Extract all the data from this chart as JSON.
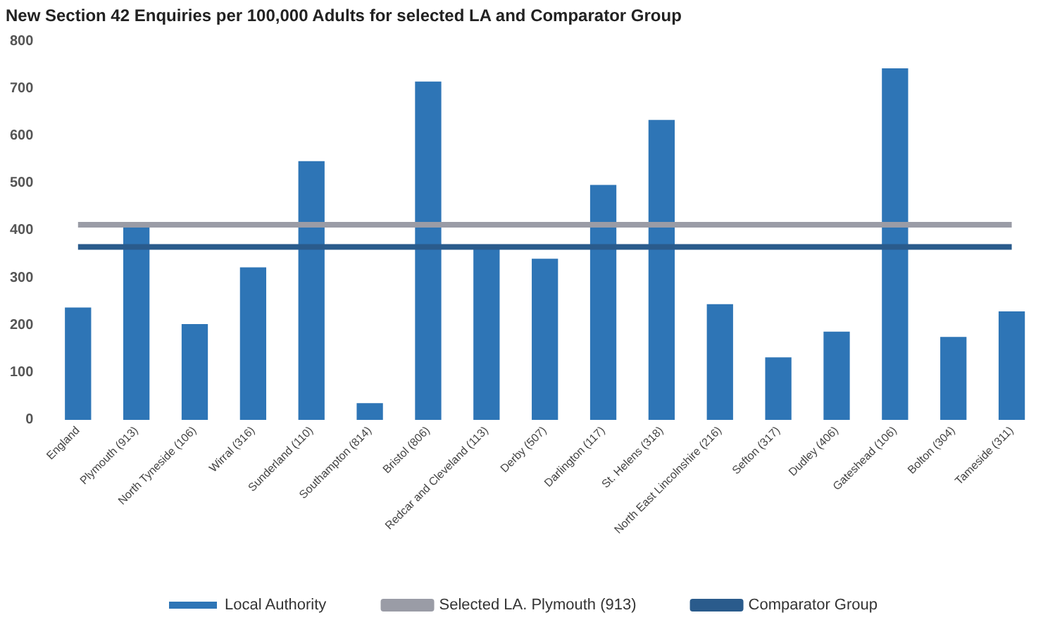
{
  "chart_data": {
    "type": "bar",
    "title": "New Section 42 Enquiries per 100,000 Adults for selected LA and Comparator Group",
    "categories": [
      "England",
      "Plymouth (913)",
      "North Tyneside (106)",
      "Wirral (316)",
      "Sunderland (110)",
      "Southampton (814)",
      "Bristol (806)",
      "Redcar and Cleveland (113)",
      "Derby (507)",
      "Darlington (117)",
      "St. Helens (318)",
      "North East Lincolnshire (216)",
      "Sefton (317)",
      "Dudley (406)",
      "Gateshead (106)",
      "Bolton (304)",
      "Tameside (311)"
    ],
    "series": [
      {
        "name": "Local Authority",
        "color": "#2e75b6",
        "values": [
          237,
          410,
          202,
          322,
          546,
          35,
          714,
          368,
          340,
          496,
          633,
          244,
          132,
          186,
          742,
          175,
          229
        ]
      },
      {
        "name": "Selected LA. Plymouth (913)",
        "type": "line",
        "color": "#9a9ca6",
        "values": [
          412,
          412,
          412,
          412,
          412,
          412,
          412,
          412,
          412,
          412,
          412,
          412,
          412,
          412,
          412,
          412,
          412
        ]
      },
      {
        "name": "Comparator Group",
        "type": "line",
        "color": "#2a5b8c",
        "values": [
          365,
          365,
          365,
          365,
          365,
          365,
          365,
          365,
          365,
          365,
          365,
          365,
          365,
          365,
          365,
          365,
          365
        ]
      }
    ],
    "ylim": [
      0,
      800
    ],
    "yticks": [
      0,
      100,
      200,
      300,
      400,
      500,
      600,
      700,
      800
    ],
    "legend": "bottom",
    "marker": "none"
  }
}
